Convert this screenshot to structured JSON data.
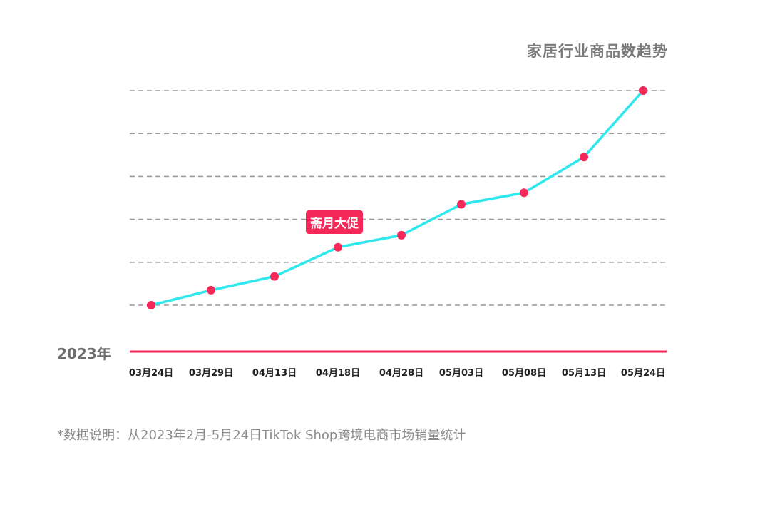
{
  "chart_data": {
    "type": "line",
    "title": "家居行业商品数趋势",
    "year_label": "2023年",
    "categories": [
      "03月24日",
      "03月29日",
      "04月13日",
      "04月18日",
      "04月28日",
      "05月03日",
      "05月08日",
      "05月13日",
      "05月24日"
    ],
    "series": [
      {
        "values": [
          0.0,
          0.35,
          0.67,
          1.35,
          1.63,
          2.35,
          2.62,
          3.45,
          5.0
        ]
      }
    ],
    "ylim": [
      0,
      5
    ],
    "grid": true,
    "xlabel": "",
    "ylabel": "",
    "annotations": [
      {
        "text": "斋月大促",
        "category_index": 3
      }
    ]
  },
  "colors": {
    "line": "#2ee8ee",
    "marker": "#f5285a",
    "baseline": "#f5285a",
    "grid": "#9a9a9a",
    "title": "#7a7a7a",
    "tick": "#222222"
  },
  "footnote": "*数据说明：从2023年2月-5月24日TikTok Shop跨境电商市场销量统计"
}
